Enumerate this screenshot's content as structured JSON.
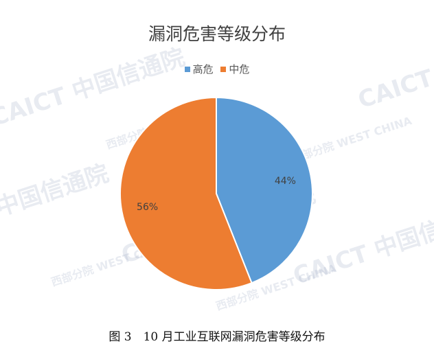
{
  "chart_data": {
    "type": "pie",
    "title": "漏洞危害等级分布",
    "categories": [
      "高危",
      "中危"
    ],
    "values": [
      44,
      56
    ],
    "labels": [
      "44%",
      "56%"
    ],
    "colors": [
      "#5B9BD5",
      "#ED7D31"
    ],
    "legend_position": "top"
  },
  "caption": "图 3　10 月工业互联网漏洞危害等级分布",
  "watermark": [
    "CAICT 中国信通院",
    "西部分院 WEST CHINA"
  ]
}
